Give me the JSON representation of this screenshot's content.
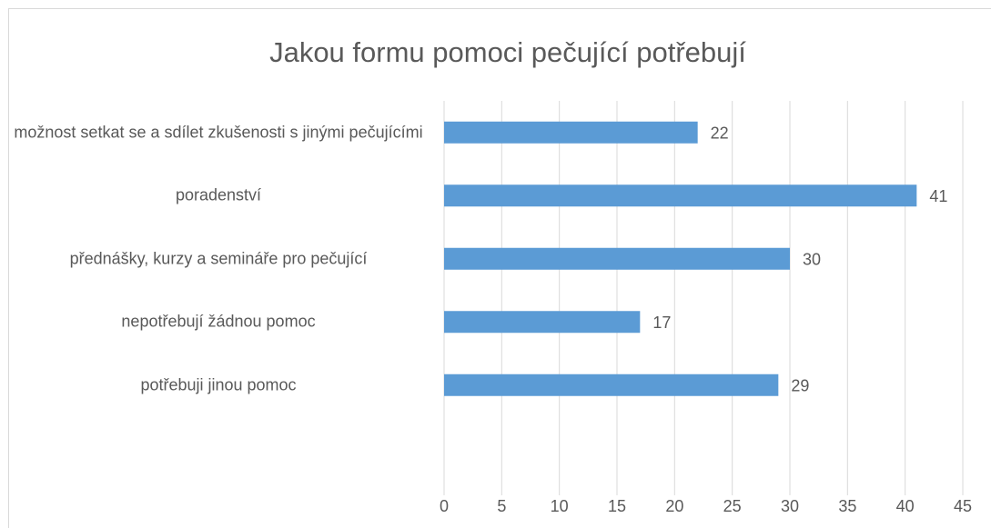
{
  "chart_data": {
    "type": "bar",
    "orientation": "horizontal",
    "title": "Jakou formu pomoci pečující potřebují",
    "categories": [
      "možnost setkat se a sdílet zkušenosti s jinými pečujícími",
      "poradenství",
      "přednášky, kurzy a semináře pro pečující",
      "nepotřebují žádnou pomoc",
      "potřebuji jinou pomoc"
    ],
    "values": [
      22,
      41,
      30,
      17,
      29
    ],
    "color": "#5b9bd5",
    "xlim": [
      0,
      45
    ],
    "xticks": [
      0,
      5,
      10,
      15,
      20,
      25,
      30,
      35,
      40,
      45
    ],
    "grid": true
  }
}
